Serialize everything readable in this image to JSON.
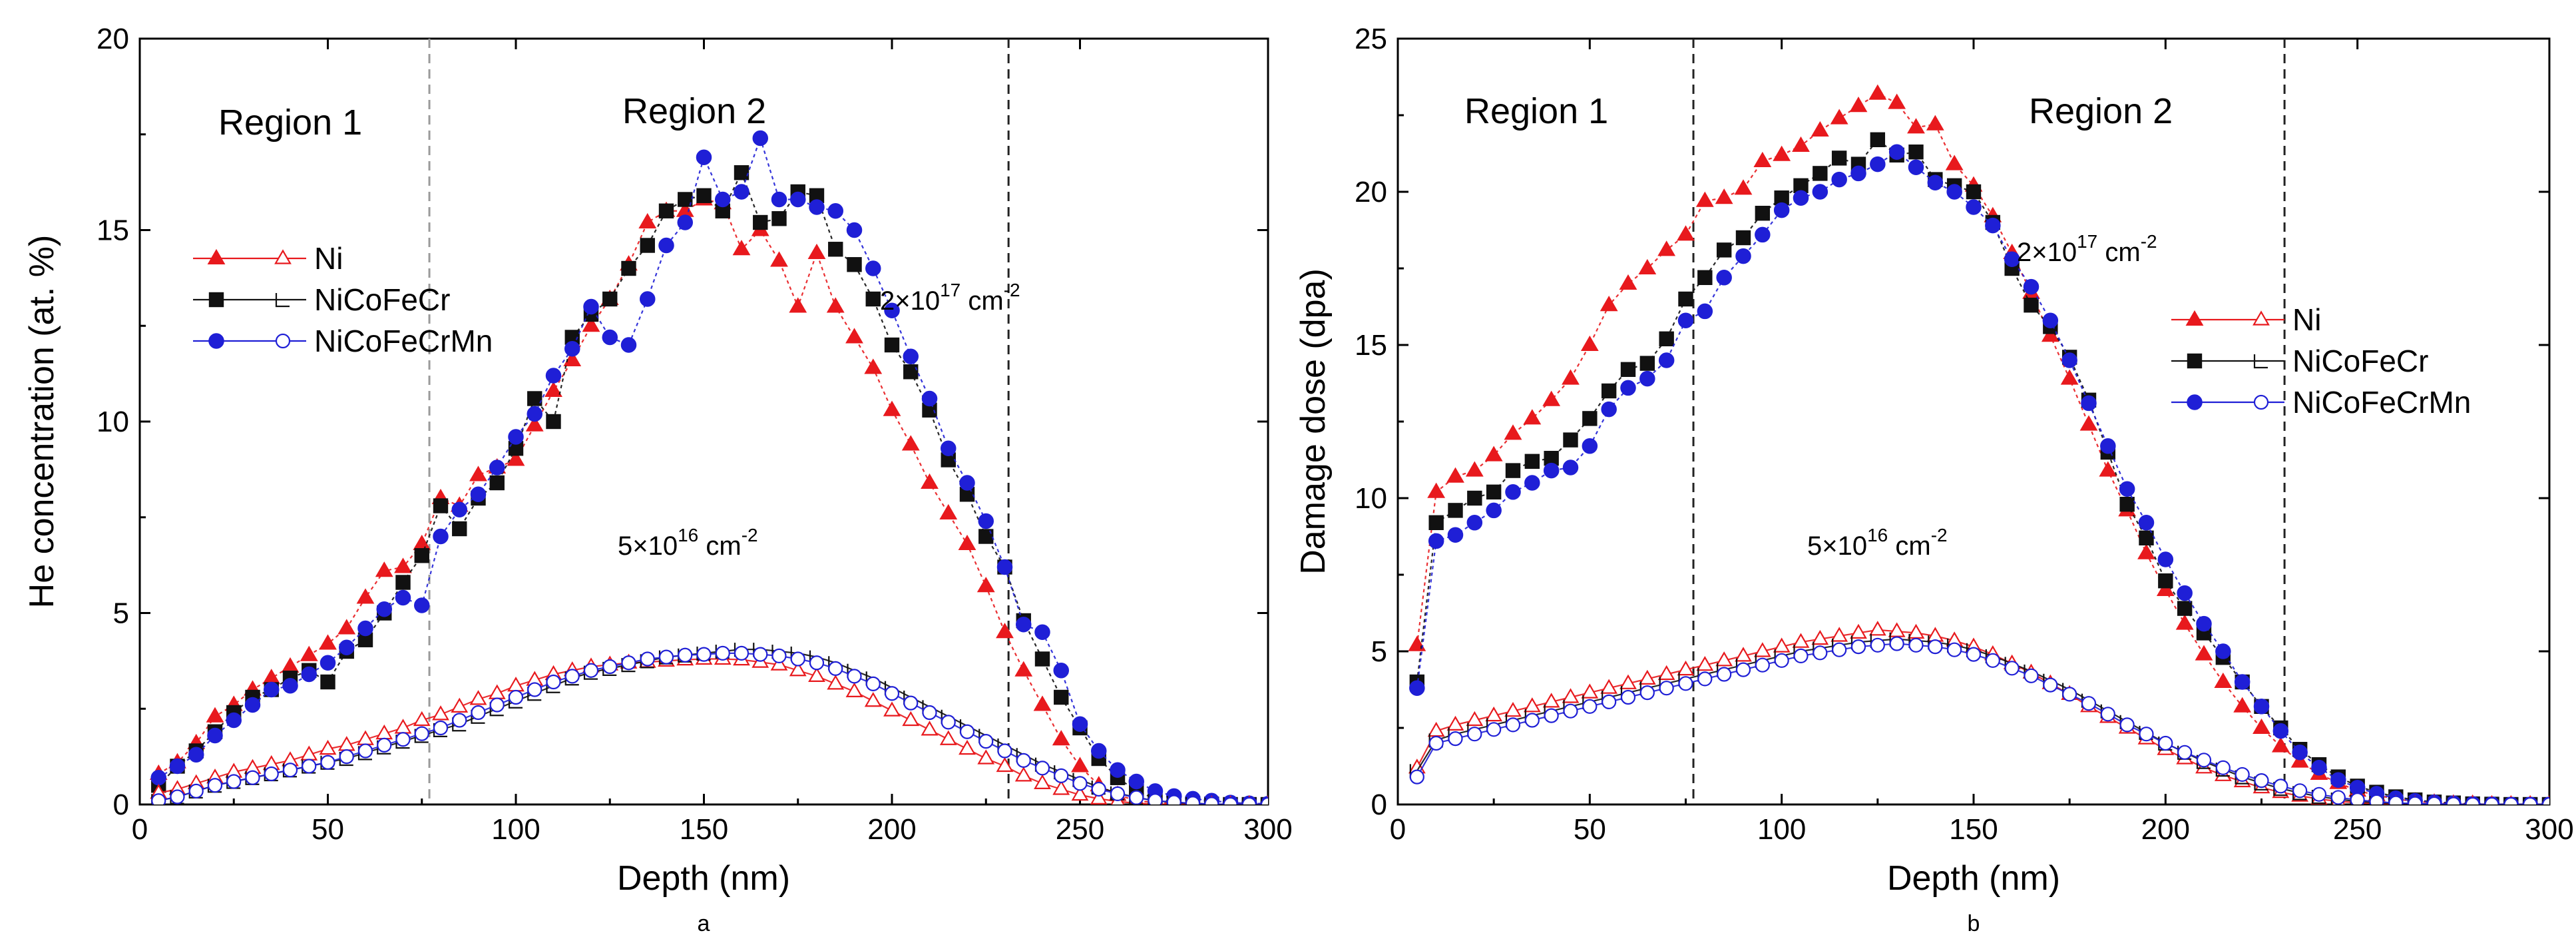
{
  "chart_data": [
    {
      "type": "line",
      "panel_label": "a",
      "xlabel": "Depth (nm)",
      "ylabel": "He concentration (at. %)",
      "xlim": [
        0,
        300
      ],
      "ylim": [
        0,
        20
      ],
      "xticks": [
        0,
        50,
        100,
        150,
        200,
        250,
        300
      ],
      "yticks": [
        0,
        5,
        10,
        15,
        20
      ],
      "region_labels": [
        "Region 1",
        "Region 2"
      ],
      "boundaries": [
        {
          "x": 77,
          "style": "gray"
        },
        {
          "x": 231,
          "style": "black"
        }
      ],
      "fluence_labels": [
        {
          "base": "2×10",
          "exp": "17",
          "unit": " cm",
          "unit_exp": "-2",
          "x": 233,
          "y": 14.4
        },
        {
          "base": "5×10",
          "exp": "16",
          "unit": " cm",
          "unit_exp": "-2",
          "x": 130,
          "y": 6.6
        }
      ],
      "legend": {
        "position": "left",
        "entries": [
          {
            "label": "Ni",
            "color": "#e8191d",
            "shape": "triangle"
          },
          {
            "label": "NiCoFeCr",
            "color": "#111111",
            "shape": "square"
          },
          {
            "label": "NiCoFeCrMn",
            "color": "#1f1fd6",
            "shape": "circle"
          }
        ]
      },
      "x": [
        5,
        10,
        15,
        20,
        25,
        30,
        35,
        40,
        45,
        50,
        55,
        60,
        65,
        70,
        75,
        80,
        85,
        90,
        95,
        100,
        105,
        110,
        115,
        120,
        125,
        130,
        135,
        140,
        145,
        150,
        155,
        160,
        165,
        170,
        175,
        180,
        185,
        190,
        195,
        200,
        205,
        210,
        215,
        220,
        225,
        230,
        235,
        240,
        245,
        250,
        255,
        260,
        265,
        270,
        275,
        280,
        285,
        290,
        295,
        300
      ],
      "series": [
        {
          "name": "Ni",
          "fluence": "2×10^17",
          "color": "#e8191d",
          "shape": "triangle",
          "filled": true,
          "values": [
            0.8,
            1.1,
            1.6,
            2.3,
            2.6,
            3.0,
            3.3,
            3.6,
            3.9,
            4.2,
            4.6,
            5.4,
            6.1,
            6.2,
            6.8,
            8.0,
            7.8,
            8.6,
            8.8,
            9.0,
            9.9,
            10.8,
            11.6,
            12.5,
            13.2,
            14.1,
            15.2,
            15.5,
            15.5,
            15.8,
            15.7,
            14.5,
            15.0,
            14.2,
            13.0,
            14.4,
            13.0,
            12.2,
            11.4,
            10.3,
            9.4,
            8.4,
            7.6,
            6.8,
            5.7,
            4.5,
            3.5,
            2.6,
            1.7,
            1.0,
            0.5,
            0.25,
            0.1,
            0.05,
            0.02,
            0.01,
            0.0,
            0.0,
            0.0,
            0.0
          ]
        },
        {
          "name": "NiCoFeCr",
          "fluence": "2×10^17",
          "color": "#111111",
          "shape": "square",
          "filled": true,
          "values": [
            0.5,
            1.0,
            1.4,
            1.9,
            2.4,
            2.8,
            3.0,
            3.3,
            3.5,
            3.2,
            4.0,
            4.3,
            5.0,
            5.8,
            6.5,
            7.8,
            7.2,
            8.0,
            8.4,
            9.3,
            10.6,
            10.0,
            12.2,
            12.8,
            13.2,
            14.0,
            14.6,
            15.5,
            15.8,
            15.9,
            15.5,
            16.5,
            15.2,
            15.3,
            16.0,
            15.9,
            14.5,
            14.1,
            13.2,
            12.0,
            11.3,
            10.3,
            9.0,
            8.1,
            7.0,
            6.2,
            4.8,
            3.8,
            2.8,
            2.0,
            1.2,
            0.7,
            0.35,
            0.15,
            0.06,
            0.03,
            0.01,
            0.0,
            0.0,
            0.0
          ]
        },
        {
          "name": "NiCoFeCrMn",
          "fluence": "2×10^17",
          "color": "#1f1fd6",
          "shape": "circle",
          "filled": true,
          "values": [
            0.7,
            1.0,
            1.3,
            1.8,
            2.2,
            2.6,
            3.0,
            3.1,
            3.4,
            3.7,
            4.1,
            4.6,
            5.1,
            5.4,
            5.2,
            7.0,
            7.7,
            8.1,
            8.8,
            9.6,
            10.2,
            11.2,
            11.9,
            13.0,
            12.2,
            12.0,
            13.2,
            14.6,
            15.2,
            16.9,
            15.8,
            16.0,
            17.4,
            15.8,
            15.8,
            15.6,
            15.5,
            15.0,
            14.0,
            12.9,
            11.7,
            10.6,
            9.3,
            8.4,
            7.4,
            6.2,
            4.7,
            4.5,
            3.5,
            2.1,
            1.4,
            0.9,
            0.6,
            0.35,
            0.22,
            0.15,
            0.1,
            0.05,
            0.03,
            0.02
          ]
        },
        {
          "name": "Ni",
          "fluence": "5×10^16",
          "color": "#e8191d",
          "shape": "triangle",
          "filled": false,
          "values": [
            0.3,
            0.4,
            0.55,
            0.7,
            0.85,
            0.95,
            1.05,
            1.15,
            1.3,
            1.45,
            1.55,
            1.7,
            1.85,
            2.0,
            2.2,
            2.35,
            2.55,
            2.75,
            2.9,
            3.1,
            3.25,
            3.4,
            3.5,
            3.6,
            3.65,
            3.7,
            3.72,
            3.75,
            3.78,
            3.8,
            3.8,
            3.78,
            3.72,
            3.65,
            3.5,
            3.35,
            3.15,
            2.95,
            2.7,
            2.45,
            2.2,
            1.95,
            1.7,
            1.45,
            1.2,
            1.0,
            0.75,
            0.55,
            0.4,
            0.25,
            0.15,
            0.08,
            0.03,
            0.01,
            0.0,
            0.0,
            0.0,
            0.0,
            0.0,
            0.0
          ]
        },
        {
          "name": "NiCoFeCr",
          "fluence": "5×10^16",
          "color": "#111111",
          "shape": "square",
          "filled": false,
          "values": [
            0.1,
            0.2,
            0.35,
            0.5,
            0.6,
            0.7,
            0.8,
            0.9,
            1.0,
            1.1,
            1.2,
            1.35,
            1.5,
            1.65,
            1.8,
            1.95,
            2.1,
            2.3,
            2.5,
            2.7,
            2.9,
            3.1,
            3.3,
            3.45,
            3.55,
            3.65,
            3.75,
            3.85,
            3.9,
            3.95,
            4.0,
            4.05,
            4.05,
            4.0,
            3.95,
            3.85,
            3.7,
            3.5,
            3.3,
            3.05,
            2.8,
            2.55,
            2.3,
            2.05,
            1.8,
            1.55,
            1.3,
            1.05,
            0.85,
            0.65,
            0.45,
            0.3,
            0.18,
            0.1,
            0.05,
            0.02,
            0.0,
            0.0,
            0.0,
            0.0
          ]
        },
        {
          "name": "NiCoFeCrMn",
          "fluence": "5×10^16",
          "color": "#1f1fd6",
          "shape": "circle",
          "filled": false,
          "values": [
            0.1,
            0.2,
            0.35,
            0.5,
            0.6,
            0.7,
            0.8,
            0.9,
            1.0,
            1.1,
            1.25,
            1.4,
            1.55,
            1.7,
            1.85,
            2.0,
            2.2,
            2.4,
            2.6,
            2.8,
            3.0,
            3.2,
            3.35,
            3.5,
            3.6,
            3.7,
            3.8,
            3.85,
            3.9,
            3.92,
            3.95,
            3.95,
            3.92,
            3.88,
            3.8,
            3.7,
            3.55,
            3.35,
            3.15,
            2.9,
            2.65,
            2.4,
            2.15,
            1.9,
            1.65,
            1.4,
            1.15,
            0.95,
            0.75,
            0.55,
            0.4,
            0.28,
            0.18,
            0.1,
            0.06,
            0.03,
            0.01,
            0.0,
            0.0,
            0.0
          ]
        }
      ]
    },
    {
      "type": "line",
      "panel_label": "b",
      "xlabel": "Depth (nm)",
      "ylabel": "Damage dose (dpa)",
      "xlim": [
        0,
        300
      ],
      "ylim": [
        0,
        25
      ],
      "xticks": [
        0,
        50,
        100,
        150,
        200,
        250,
        300
      ],
      "yticks": [
        0,
        5,
        10,
        15,
        20,
        25
      ],
      "region_labels": [
        "Region 1",
        "Region 2"
      ],
      "boundaries": [
        {
          "x": 77,
          "style": "black"
        },
        {
          "x": 231,
          "style": "black"
        }
      ],
      "fluence_labels": [
        {
          "base": "2×10",
          "exp": "17",
          "unit": " cm",
          "unit_exp": "-2",
          "x": 160,
          "y": 18.0
        },
        {
          "base": "5×10",
          "exp": "16",
          "unit": " cm",
          "unit_exp": "-2",
          "x": 105,
          "y": 8.4
        }
      ],
      "legend": {
        "position": "right",
        "entries": [
          {
            "label": "Ni",
            "color": "#e8191d",
            "shape": "triangle"
          },
          {
            "label": "NiCoFeCr",
            "color": "#111111",
            "shape": "square"
          },
          {
            "label": "NiCoFeCrMn",
            "color": "#1f1fd6",
            "shape": "circle"
          }
        ]
      },
      "x": [
        5,
        10,
        15,
        20,
        25,
        30,
        35,
        40,
        45,
        50,
        55,
        60,
        65,
        70,
        75,
        80,
        85,
        90,
        95,
        100,
        105,
        110,
        115,
        120,
        125,
        130,
        135,
        140,
        145,
        150,
        155,
        160,
        165,
        170,
        175,
        180,
        185,
        190,
        195,
        200,
        205,
        210,
        215,
        220,
        225,
        230,
        235,
        240,
        245,
        250,
        255,
        260,
        265,
        270,
        275,
        280,
        285,
        290,
        295,
        300
      ],
      "series": [
        {
          "name": "Ni",
          "fluence": "2×10^17",
          "color": "#e8191d",
          "shape": "triangle",
          "filled": true,
          "values": [
            5.2,
            10.2,
            10.7,
            10.9,
            11.4,
            12.1,
            12.6,
            13.2,
            13.9,
            15.0,
            16.3,
            17.0,
            17.5,
            18.1,
            18.6,
            19.7,
            19.8,
            20.1,
            21.0,
            21.2,
            21.5,
            22.0,
            22.4,
            22.8,
            23.2,
            22.9,
            22.1,
            22.2,
            20.9,
            20.2,
            19.2,
            18.0,
            16.7,
            15.3,
            13.9,
            12.4,
            10.9,
            9.6,
            8.2,
            7.0,
            5.9,
            4.9,
            4.0,
            3.2,
            2.5,
            1.9,
            1.4,
            1.0,
            0.7,
            0.45,
            0.3,
            0.18,
            0.1,
            0.06,
            0.03,
            0.02,
            0.0,
            0.0,
            0.0,
            0.0
          ]
        },
        {
          "name": "NiCoFeCr",
          "fluence": "2×10^17",
          "color": "#111111",
          "shape": "square",
          "filled": true,
          "values": [
            4.0,
            9.2,
            9.6,
            10.0,
            10.2,
            10.9,
            11.2,
            11.3,
            11.9,
            12.6,
            13.5,
            14.2,
            14.4,
            15.2,
            16.5,
            17.2,
            18.1,
            18.5,
            19.3,
            19.8,
            20.2,
            20.6,
            21.1,
            20.9,
            21.7,
            21.2,
            21.3,
            20.4,
            20.2,
            20.0,
            19.0,
            17.5,
            16.3,
            15.6,
            14.6,
            13.2,
            11.5,
            9.8,
            8.7,
            7.3,
            6.4,
            5.6,
            4.8,
            4.0,
            3.2,
            2.5,
            1.8,
            1.3,
            0.9,
            0.6,
            0.4,
            0.25,
            0.15,
            0.08,
            0.05,
            0.02,
            0.01,
            0.0,
            0.0,
            0.0
          ]
        },
        {
          "name": "NiCoFeCrMn",
          "fluence": "2×10^17",
          "color": "#1f1fd6",
          "shape": "circle",
          "filled": true,
          "values": [
            3.8,
            8.6,
            8.8,
            9.2,
            9.6,
            10.2,
            10.5,
            10.9,
            11.0,
            11.7,
            12.9,
            13.6,
            13.9,
            14.5,
            15.8,
            16.1,
            17.2,
            17.9,
            18.6,
            19.4,
            19.8,
            20.0,
            20.4,
            20.6,
            20.9,
            21.3,
            20.8,
            20.3,
            20.0,
            19.5,
            18.9,
            17.8,
            16.9,
            15.8,
            14.5,
            13.1,
            11.7,
            10.3,
            9.2,
            8.0,
            6.9,
            5.9,
            5.0,
            4.0,
            3.2,
            2.4,
            1.7,
            1.2,
            0.8,
            0.55,
            0.35,
            0.2,
            0.12,
            0.07,
            0.04,
            0.02,
            0.01,
            0.0,
            0.0,
            0.0
          ]
        },
        {
          "name": "Ni",
          "fluence": "5×10^16",
          "color": "#e8191d",
          "shape": "triangle",
          "filled": false,
          "values": [
            1.2,
            2.4,
            2.6,
            2.75,
            2.9,
            3.05,
            3.2,
            3.35,
            3.5,
            3.65,
            3.8,
            3.95,
            4.1,
            4.25,
            4.4,
            4.55,
            4.7,
            4.85,
            5.0,
            5.15,
            5.3,
            5.4,
            5.5,
            5.6,
            5.7,
            5.65,
            5.6,
            5.5,
            5.35,
            5.15,
            4.9,
            4.6,
            4.3,
            3.95,
            3.6,
            3.2,
            2.85,
            2.5,
            2.15,
            1.8,
            1.5,
            1.2,
            0.95,
            0.75,
            0.55,
            0.4,
            0.28,
            0.18,
            0.1,
            0.06,
            0.03,
            0.02,
            0.01,
            0.0,
            0.0,
            0.0,
            0.0,
            0.0,
            0.0,
            0.0
          ]
        },
        {
          "name": "NiCoFeCr",
          "fluence": "5×10^16",
          "color": "#111111",
          "shape": "square",
          "filled": false,
          "values": [
            1.1,
            2.1,
            2.3,
            2.45,
            2.6,
            2.75,
            2.9,
            3.05,
            3.2,
            3.35,
            3.5,
            3.65,
            3.8,
            3.95,
            4.1,
            4.25,
            4.4,
            4.55,
            4.7,
            4.85,
            5.0,
            5.1,
            5.2,
            5.3,
            5.35,
            5.4,
            5.35,
            5.3,
            5.2,
            5.05,
            4.85,
            4.6,
            4.35,
            4.05,
            3.75,
            3.4,
            3.05,
            2.7,
            2.35,
            2.0,
            1.7,
            1.4,
            1.15,
            0.9,
            0.7,
            0.52,
            0.38,
            0.26,
            0.17,
            0.1,
            0.06,
            0.03,
            0.02,
            0.01,
            0.0,
            0.0,
            0.0,
            0.0,
            0.0,
            0.0
          ]
        },
        {
          "name": "NiCoFeCrMn",
          "fluence": "5×10^16",
          "color": "#1f1fd6",
          "shape": "circle",
          "filled": false,
          "values": [
            0.9,
            2.0,
            2.15,
            2.3,
            2.45,
            2.6,
            2.75,
            2.9,
            3.05,
            3.2,
            3.35,
            3.5,
            3.65,
            3.8,
            3.95,
            4.1,
            4.25,
            4.4,
            4.55,
            4.7,
            4.85,
            4.95,
            5.05,
            5.15,
            5.2,
            5.25,
            5.2,
            5.15,
            5.05,
            4.9,
            4.7,
            4.45,
            4.2,
            3.9,
            3.6,
            3.3,
            2.95,
            2.6,
            2.3,
            2.0,
            1.7,
            1.45,
            1.2,
            0.98,
            0.78,
            0.6,
            0.45,
            0.33,
            0.23,
            0.15,
            0.09,
            0.05,
            0.03,
            0.02,
            0.01,
            0.0,
            0.0,
            0.0,
            0.0,
            0.0
          ]
        }
      ]
    }
  ]
}
